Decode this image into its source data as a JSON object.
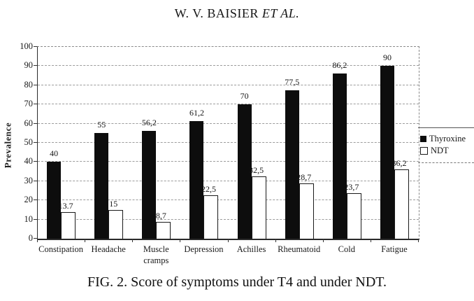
{
  "header": {
    "authors": "W. V. BAISIER",
    "et_al": "ET AL."
  },
  "caption": "FIG. 2. Score of symptoms under T4 and under NDT.",
  "chart_data": {
    "type": "bar",
    "title": "",
    "xlabel": "",
    "ylabel": "Prevalence",
    "ylim": [
      0,
      100
    ],
    "ytick_step": 10,
    "ytick_labels": [
      "0",
      "10",
      "20",
      "30",
      "40",
      "50",
      "60",
      "70",
      "80",
      "90",
      "100"
    ],
    "grid": true,
    "legend_position": "right-outside",
    "categories": [
      "Constipation",
      "Headache",
      "Muscle cramps",
      "Depression",
      "Achilles",
      "Rheumatoid",
      "Cold",
      "Fatigue"
    ],
    "series": [
      {
        "name": "Thyroxine",
        "style": "solid-black",
        "values": [
          40,
          55,
          56.2,
          61.2,
          70,
          77.5,
          86.2,
          90
        ],
        "value_labels": [
          "40",
          "55",
          "56,2",
          "61,2",
          "70",
          "77,5",
          "86,2",
          "90"
        ]
      },
      {
        "name": "NDT",
        "style": "white-outline",
        "values": [
          13.7,
          15,
          8.7,
          22.5,
          32.5,
          28.7,
          23.7,
          36.2
        ],
        "value_labels": [
          "13.7",
          "15",
          "8,7",
          "22,5",
          "32,5",
          "28,7",
          "23,7",
          "36,2"
        ]
      }
    ],
    "colors": {
      "bar_fill_thyroxine": "#0d0d0d",
      "bar_fill_ndt": "#ffffff",
      "bar_border": "#1a1a1a",
      "gridline": "#9b9b9b",
      "axis": "#2a2a2a",
      "text": "#1a1a1a",
      "background": "#ffffff"
    }
  }
}
